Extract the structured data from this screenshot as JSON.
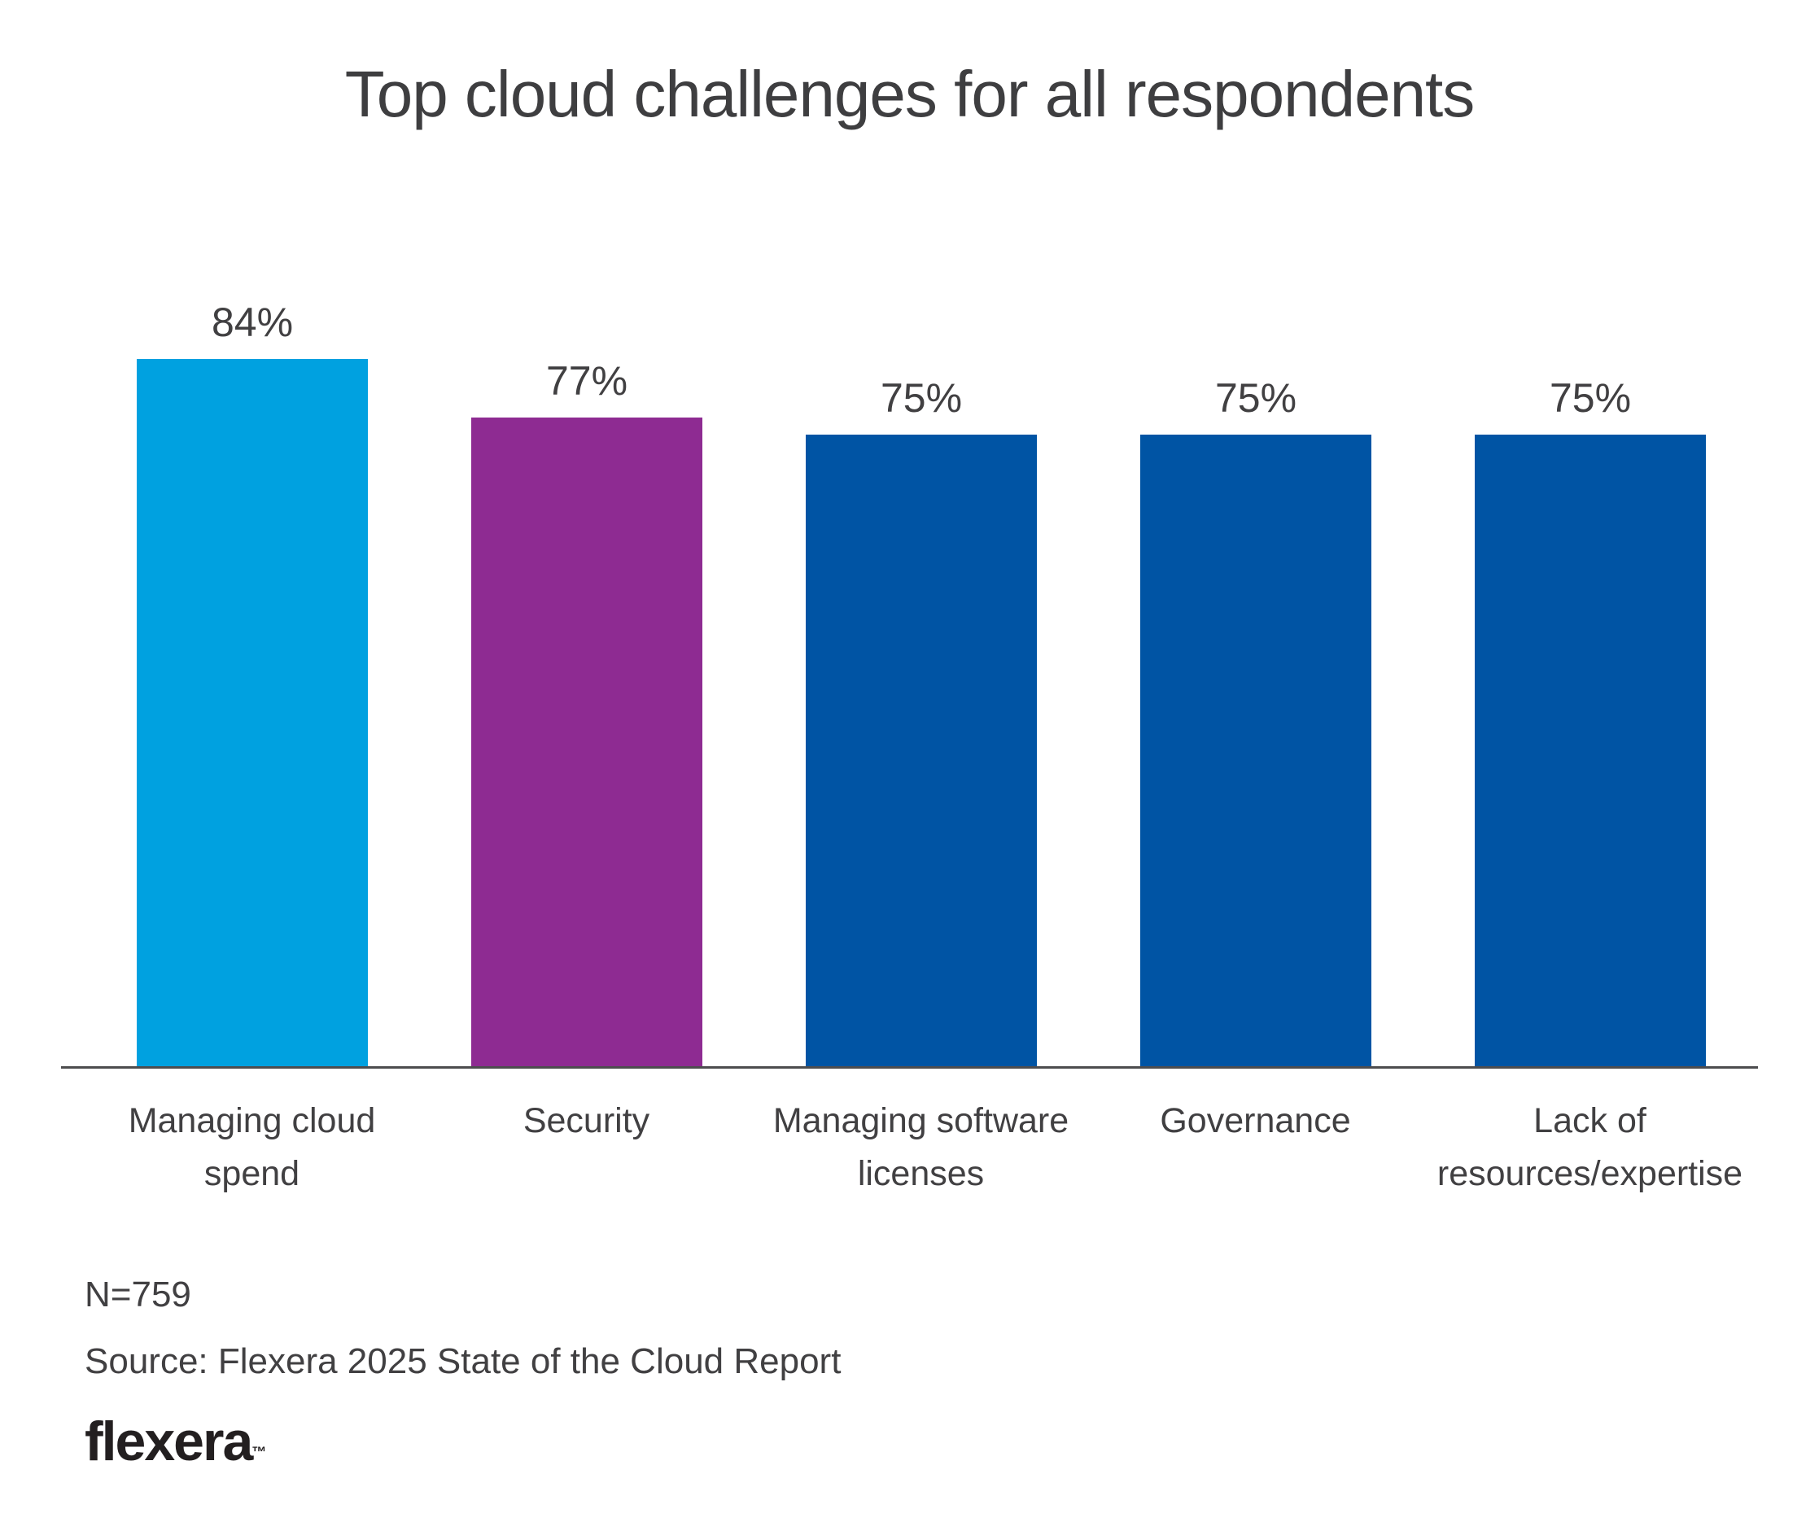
{
  "title": "Top cloud challenges for all respondents",
  "chart_data": {
    "type": "bar",
    "title": "Top cloud challenges for all respondents",
    "categories": [
      "Managing cloud spend",
      "Security",
      "Managing software licenses",
      "Governance",
      "Lack of resources/expertise"
    ],
    "values": [
      84,
      77,
      75,
      75,
      75
    ],
    "value_labels": [
      "84%",
      "77%",
      "75%",
      "75%",
      "75%"
    ],
    "bar_colors": [
      "#00A1E0",
      "#8E2B92",
      "#0054A4",
      "#0054A4",
      "#0054A4"
    ],
    "xlabel": "",
    "ylabel": "",
    "ylim": [
      0,
      100
    ],
    "grid": false,
    "legend": false,
    "data_labels_position": "above-bar"
  },
  "footer": {
    "sample_size": "N=759",
    "source": "Source: Flexera 2025 State of the Cloud Report",
    "logo_text": "flexera",
    "logo_tm": "™"
  },
  "colors": {
    "accent_cyan": "#00A1E0",
    "accent_purple": "#8E2B92",
    "accent_dark_blue": "#0054A4",
    "text": "#414042",
    "axis_line": "#4D4D4F",
    "logo": "#231F20",
    "background": "#FFFFFF"
  }
}
